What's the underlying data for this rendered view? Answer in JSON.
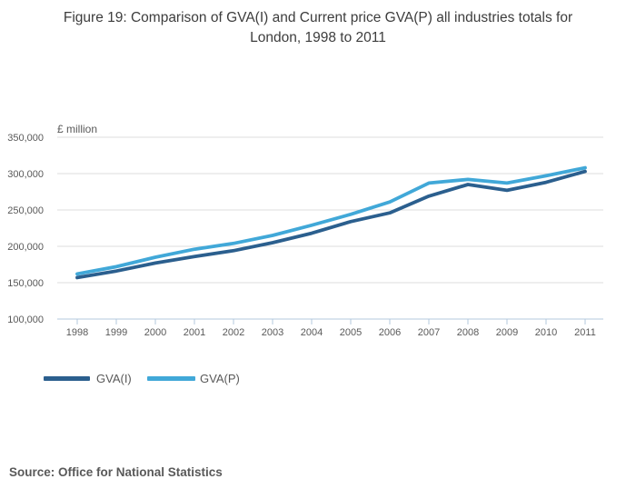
{
  "title": "Figure 19: Comparison of GVA(I) and Current price GVA(P) all industries totals for London, 1998 to 2011",
  "source_text": "Source: Office for National Statistics",
  "chart_data": {
    "type": "line",
    "title": "Figure 19: Comparison of GVA(I) and Current price GVA(P) all industries totals for London, 1998 to 2011",
    "xlabel": "",
    "ylabel": "£ million",
    "x": [
      1998,
      1999,
      2000,
      2001,
      2002,
      2003,
      2004,
      2005,
      2006,
      2007,
      2008,
      2009,
      2010,
      2011
    ],
    "series": [
      {
        "name": "GVA(I)",
        "color": "#2b5f8e",
        "values": [
          157000,
          166000,
          177000,
          186000,
          194000,
          205000,
          218000,
          234000,
          246000,
          269000,
          285000,
          277000,
          288000,
          303000
        ]
      },
      {
        "name": "GVA(P)",
        "color": "#41a8d8",
        "values": [
          162000,
          172000,
          185000,
          196000,
          204000,
          215000,
          229000,
          244000,
          261000,
          287000,
          292000,
          287000,
          297000,
          308000
        ]
      }
    ],
    "ylim": [
      100000,
      350000
    ],
    "yticks": [
      100000,
      150000,
      200000,
      250000,
      300000,
      350000
    ],
    "grid": true,
    "grid_color": "#dcdcdc",
    "axis_color": "#b3c8de",
    "tick_label_color": "#595959",
    "legend_position": "bottom-left"
  }
}
